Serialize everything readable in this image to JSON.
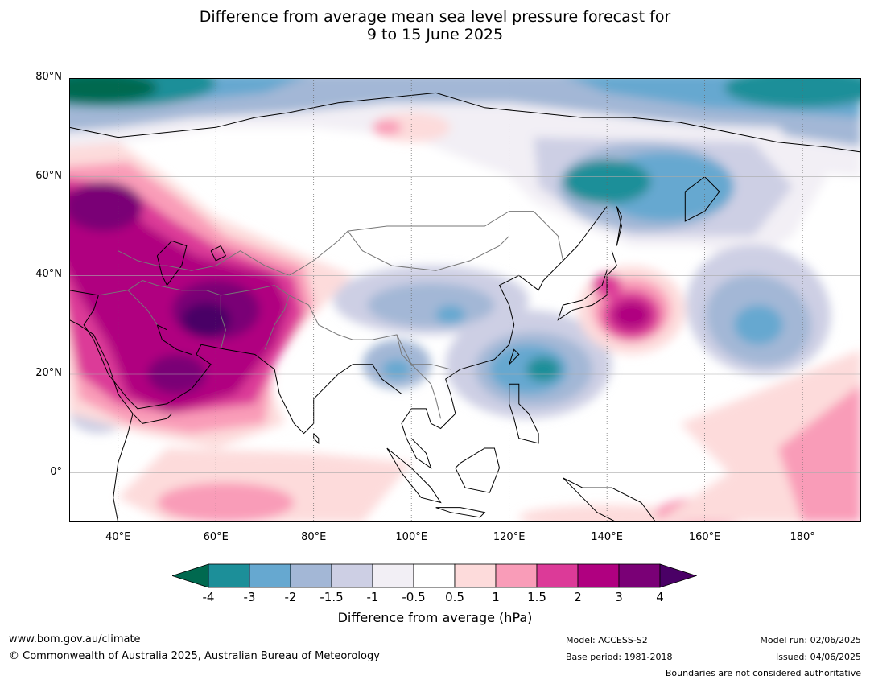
{
  "title": {
    "line1": "Difference from average mean sea level pressure forecast for",
    "line2": "9 to 15 June 2025"
  },
  "map": {
    "lat_labels": [
      "80°N",
      "60°N",
      "40°N",
      "20°N",
      "0°"
    ],
    "lon_labels": [
      "40°E",
      "60°E",
      "80°E",
      "100°E",
      "120°E",
      "140°E",
      "160°E",
      "180°"
    ],
    "lat_range": [
      -10,
      80
    ],
    "lon_range": [
      30,
      192
    ],
    "colors": {
      "neg4": "#00694f",
      "neg3": "#1c8f99",
      "neg2": "#66a8d0",
      "neg15": "#a3b7d6",
      "neg1": "#cdcfe4",
      "neg05": "#f2eff5",
      "zero": "#ffffff",
      "pos05": "#fddbdb",
      "pos1": "#f99cb8",
      "pos15": "#dc3a98",
      "pos2": "#b00080",
      "pos3": "#7a0076",
      "pos4": "#4a0066"
    }
  },
  "colorbar": {
    "ticks": [
      "-4",
      "-3",
      "-2",
      "-1.5",
      "-1",
      "-0.5",
      "0.5",
      "1",
      "1.5",
      "2",
      "3",
      "4"
    ],
    "colors": [
      "#00694f",
      "#1c8f99",
      "#66a8d0",
      "#a3b7d6",
      "#cdcfe4",
      "#f2eff5",
      "#ffffff",
      "#fddbdb",
      "#f99cb8",
      "#dc3a98",
      "#b00080",
      "#7a0076",
      "#4a0066"
    ],
    "title": "Difference from average (hPa)"
  },
  "footer": {
    "website": "www.bom.gov.au/climate",
    "copyright": "© Commonwealth of Australia 2025, Australian Bureau of Meteorology",
    "model": "Model: ACCESS-S2",
    "base_period": "Base period: 1981-2018",
    "model_run": "Model run: 02/06/2025",
    "issued": "Issued: 04/06/2025",
    "boundaries": "Boundaries are not considered authoritative"
  }
}
